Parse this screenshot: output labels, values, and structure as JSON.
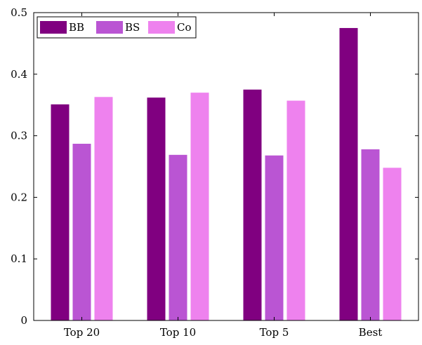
{
  "chart_data": {
    "type": "bar",
    "categories": [
      "Top 20",
      "Top 10",
      "Top 5",
      "Best"
    ],
    "series": [
      {
        "name": "BB",
        "color": "#800080",
        "values": [
          0.351,
          0.362,
          0.375,
          0.475
        ]
      },
      {
        "name": "BS",
        "color": "#BA55D3",
        "values": [
          0.287,
          0.269,
          0.268,
          0.278
        ]
      },
      {
        "name": "Co",
        "color": "#EE82EE",
        "values": [
          0.363,
          0.37,
          0.357,
          0.248
        ]
      }
    ],
    "ylim": [
      0,
      0.5
    ],
    "yticks": [
      0,
      0.1,
      0.2,
      0.3,
      0.4,
      0.5
    ],
    "ytick_labels": [
      "0",
      "0.1",
      "0.2",
      "0.3",
      "0.4",
      "0.5"
    ],
    "grid": false,
    "legend_position": "top-left",
    "legend_orientation": "horizontal"
  }
}
